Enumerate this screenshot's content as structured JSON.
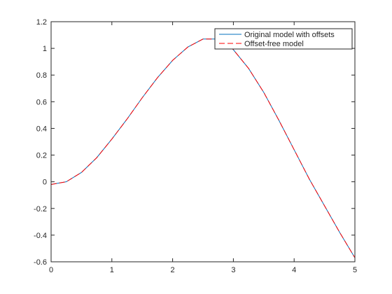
{
  "chart_data": {
    "type": "line",
    "x": [
      0,
      0.25,
      0.5,
      0.75,
      1,
      1.25,
      1.5,
      1.75,
      2,
      2.25,
      2.5,
      2.75,
      3,
      3.25,
      3.5,
      3.75,
      4,
      4.25,
      4.5,
      4.75,
      5
    ],
    "series": [
      {
        "name": "Original model with offsets",
        "color": "#0072bd",
        "dash": false,
        "values": [
          -0.02,
          0.0,
          0.07,
          0.18,
          0.32,
          0.47,
          0.63,
          0.78,
          0.91,
          1.01,
          1.07,
          1.07,
          0.99,
          0.85,
          0.67,
          0.46,
          0.24,
          0.02,
          -0.18,
          -0.38,
          -0.57
        ]
      },
      {
        "name": "Offset-free model",
        "color": "#ff0000",
        "dash": true,
        "values": [
          -0.02,
          0.0,
          0.07,
          0.18,
          0.32,
          0.47,
          0.63,
          0.78,
          0.91,
          1.01,
          1.07,
          1.07,
          0.99,
          0.85,
          0.67,
          0.46,
          0.24,
          0.02,
          -0.18,
          -0.38,
          -0.57
        ]
      }
    ],
    "xlim": [
      0,
      5
    ],
    "xticks": [
      0,
      1,
      2,
      3,
      4,
      5
    ],
    "ylim": [
      -0.6,
      1.2
    ],
    "yticks": [
      -0.6,
      -0.4,
      -0.2,
      0,
      0.2,
      0.4,
      0.6,
      0.8,
      1,
      1.2
    ],
    "legend": "top-right"
  }
}
